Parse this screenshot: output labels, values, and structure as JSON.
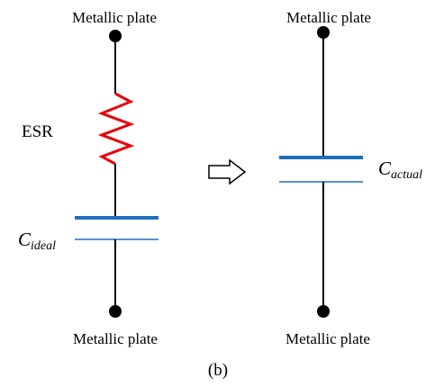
{
  "left_circuit": {
    "top_plate_label": "Metallic plate",
    "bottom_plate_label": "Metallic plate",
    "esr_label": "ESR",
    "capacitor_label": {
      "main": "C",
      "sub": "ideal"
    }
  },
  "right_circuit": {
    "top_plate_label": "Metallic plate",
    "bottom_plate_label": "Metallic plate",
    "capacitor_label": {
      "main": "C",
      "sub": "actual"
    }
  },
  "caption": "(b)",
  "colors": {
    "wire": "#000000",
    "resistor": "#e8000b",
    "capacitor_plate": "#1f6fbf",
    "arrow": "#000000"
  },
  "icons": {
    "transform_arrow": "hollow-right-arrow-icon"
  }
}
